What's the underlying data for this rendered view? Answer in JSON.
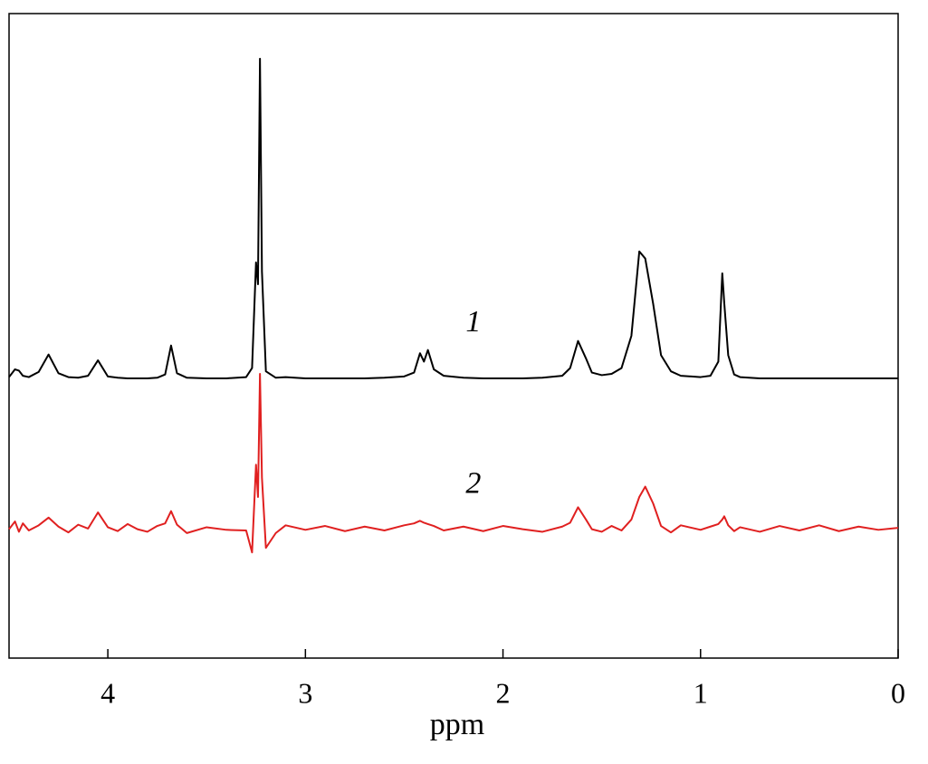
{
  "chart_data": {
    "type": "line",
    "xlabel": "ppm",
    "xlim": [
      4.5,
      0
    ],
    "ylim": [
      0,
      100
    ],
    "xticks": [
      4,
      3,
      2,
      1,
      0
    ],
    "x": [
      4.5,
      4.47,
      4.45,
      4.43,
      4.4,
      4.35,
      4.3,
      4.25,
      4.2,
      4.15,
      4.1,
      4.05,
      4.0,
      3.95,
      3.9,
      3.85,
      3.8,
      3.75,
      3.71,
      3.68,
      3.65,
      3.6,
      3.5,
      3.4,
      3.3,
      3.27,
      3.25,
      3.24,
      3.23,
      3.22,
      3.2,
      3.15,
      3.1,
      3.0,
      2.9,
      2.8,
      2.7,
      2.6,
      2.5,
      2.45,
      2.42,
      2.4,
      2.38,
      2.35,
      2.3,
      2.2,
      2.1,
      2.0,
      1.9,
      1.8,
      1.7,
      1.66,
      1.62,
      1.58,
      1.55,
      1.5,
      1.45,
      1.4,
      1.35,
      1.31,
      1.28,
      1.24,
      1.2,
      1.15,
      1.1,
      1.0,
      0.95,
      0.91,
      0.89,
      0.88,
      0.86,
      0.83,
      0.8,
      0.7,
      0.6,
      0.5,
      0.4,
      0.3,
      0.2,
      0.1,
      0.0
    ],
    "series": [
      {
        "name": "1",
        "color": "#000000",
        "values": [
          43.6,
          44.8,
          44.6,
          43.8,
          43.6,
          44.4,
          47.1,
          44.2,
          43.6,
          43.5,
          43.8,
          46.2,
          43.7,
          43.5,
          43.4,
          43.4,
          43.4,
          43.5,
          44.0,
          48.5,
          44.2,
          43.5,
          43.4,
          43.4,
          43.6,
          45.0,
          61.4,
          58.0,
          93.0,
          60.0,
          44.5,
          43.5,
          43.6,
          43.4,
          43.4,
          43.4,
          43.4,
          43.5,
          43.7,
          44.3,
          47.3,
          46.0,
          47.8,
          44.8,
          43.8,
          43.5,
          43.4,
          43.4,
          43.4,
          43.5,
          43.8,
          45.0,
          49.2,
          46.5,
          44.3,
          43.9,
          44.1,
          45.0,
          50.0,
          63.1,
          62.0,
          55.0,
          47.0,
          44.5,
          43.8,
          43.6,
          43.8,
          46.0,
          59.7,
          55.1,
          47.0,
          44.0,
          43.6,
          43.4,
          43.4,
          43.4,
          43.4,
          43.4,
          43.4,
          43.4,
          43.4
        ]
      },
      {
        "name": "2",
        "color": "#e02020",
        "values": [
          20.0,
          21.2,
          19.6,
          20.9,
          19.8,
          20.6,
          21.8,
          20.4,
          19.5,
          20.7,
          20.1,
          22.6,
          20.3,
          19.7,
          20.8,
          20.0,
          19.6,
          20.5,
          20.9,
          22.8,
          20.7,
          19.4,
          20.3,
          19.9,
          19.8,
          16.4,
          30.0,
          25.0,
          44.1,
          28.0,
          17.1,
          19.4,
          20.6,
          19.9,
          20.5,
          19.7,
          20.4,
          19.8,
          20.6,
          20.9,
          21.3,
          21.0,
          20.8,
          20.5,
          19.8,
          20.4,
          19.7,
          20.5,
          20.0,
          19.6,
          20.4,
          21.0,
          23.4,
          21.5,
          20.0,
          19.6,
          20.5,
          19.8,
          21.5,
          25.0,
          26.6,
          24.0,
          20.5,
          19.5,
          20.6,
          19.9,
          20.4,
          20.8,
          21.5,
          22.0,
          20.6,
          19.7,
          20.3,
          19.6,
          20.5,
          19.8,
          20.6,
          19.7,
          20.4,
          19.9,
          20.2
        ]
      }
    ],
    "annotations": [
      {
        "text": "1",
        "x": 2.15,
        "y": 51.8
      },
      {
        "text": "2",
        "x": 2.15,
        "y": 26.7
      }
    ]
  }
}
